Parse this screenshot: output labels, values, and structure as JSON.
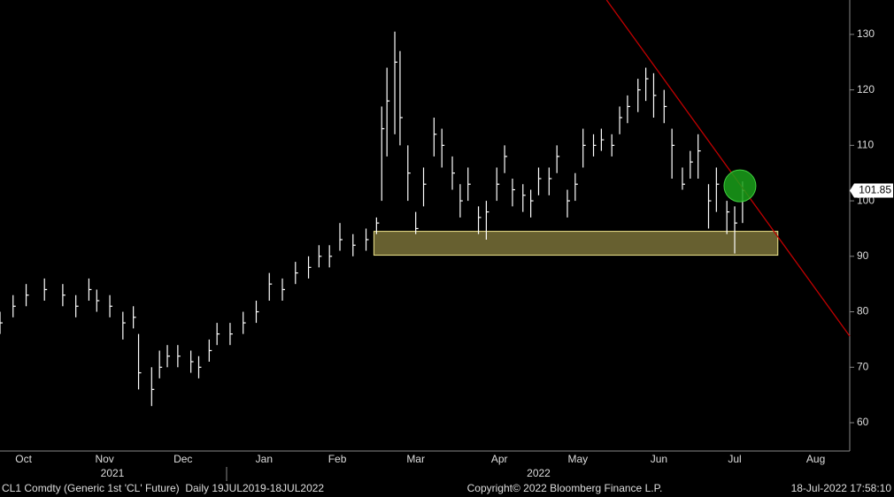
{
  "chart_data": {
    "type": "ohlc",
    "x": [
      0,
      5,
      10,
      17,
      24,
      29,
      34,
      37,
      42,
      47,
      51,
      53,
      58,
      61,
      64,
      68,
      73,
      76,
      80,
      83,
      88,
      93,
      98,
      103,
      108,
      113,
      118,
      122,
      126,
      130,
      135,
      140,
      144,
      146,
      148,
      151,
      153,
      156,
      159,
      162,
      166,
      169,
      173,
      176,
      179,
      183,
      186,
      190,
      193,
      196,
      200,
      203,
      206,
      210,
      213,
      217,
      220,
      223,
      227,
      230,
      234,
      237,
      240,
      244,
      247,
      250,
      254,
      257,
      261,
      264,
      267,
      271,
      274,
      278,
      281,
      284
    ],
    "high": [
      80,
      83,
      85,
      86,
      85,
      83,
      86,
      84,
      83,
      80,
      81,
      76,
      70,
      73,
      74,
      74,
      73,
      72,
      75,
      78,
      78,
      80,
      82,
      87,
      86,
      89,
      90,
      92,
      92,
      96,
      94,
      95,
      97,
      117,
      124,
      130.5,
      127,
      110,
      98,
      106,
      115,
      113,
      108,
      103,
      106,
      99,
      100,
      106,
      110,
      104,
      103,
      102,
      106,
      106,
      110,
      102,
      105,
      113,
      112,
      113,
      112,
      117,
      119,
      122,
      124,
      123,
      120,
      113,
      106,
      109,
      112,
      103,
      106,
      100,
      99,
      103.5
    ],
    "low": [
      76,
      79,
      81,
      82,
      81,
      79,
      82,
      80,
      79,
      75,
      77,
      66,
      63,
      68,
      70,
      70,
      69,
      68,
      71,
      74,
      74,
      76,
      78,
      82,
      82,
      85,
      86,
      88,
      88,
      91,
      90,
      91,
      94,
      100,
      108,
      112,
      110,
      100,
      94,
      99,
      108,
      106,
      102,
      97,
      100,
      94,
      93,
      100,
      105,
      99,
      98,
      97,
      101,
      101,
      105,
      97,
      100,
      106,
      108,
      109,
      108,
      112,
      114,
      116,
      118,
      115,
      114,
      104,
      102,
      104,
      104,
      95,
      98,
      94,
      90.5,
      96
    ],
    "close": [
      78,
      81,
      83,
      84,
      83,
      81,
      84,
      82,
      81,
      78,
      79,
      69,
      66,
      70,
      72,
      72,
      71,
      70,
      73,
      76,
      76,
      78,
      80,
      85,
      84,
      87,
      88,
      90,
      90,
      93,
      92,
      93,
      96,
      113,
      118,
      125,
      115,
      105,
      95,
      103,
      112,
      110,
      105,
      100,
      103,
      97,
      98,
      103,
      108,
      102,
      101,
      100,
      104,
      104,
      108,
      100,
      103,
      110,
      110,
      111,
      110,
      115,
      117,
      120,
      122,
      119,
      117,
      110,
      103,
      107,
      109,
      100,
      103,
      98,
      96,
      101.85
    ],
    "last_price": 101.85,
    "color": "#ffffff",
    "xlim": [
      0,
      325
    ],
    "ylim": [
      54.9,
      136.2
    ],
    "yticks": [
      60,
      70,
      80,
      90,
      100,
      110,
      120,
      130
    ],
    "xticks": [
      {
        "value": 9,
        "label": "Oct"
      },
      {
        "value": 40,
        "label": "Nov"
      },
      {
        "value": 70,
        "label": "Dec"
      },
      {
        "value": 101,
        "label": "Jan"
      },
      {
        "value": 129,
        "label": "Feb"
      },
      {
        "value": 159,
        "label": "Mar"
      },
      {
        "value": 191,
        "label": "Apr"
      },
      {
        "value": 221,
        "label": "May"
      },
      {
        "value": 252,
        "label": "Jun"
      },
      {
        "value": 281,
        "label": "Jul"
      },
      {
        "value": 312,
        "label": "Aug"
      }
    ],
    "years": [
      {
        "value": 43,
        "label": "2021"
      },
      {
        "value": 206,
        "label": "2022"
      }
    ],
    "trendline": {
      "x": [
        232,
        325
      ],
      "y": [
        136.2,
        75.6
      ],
      "color": "#c00000"
    },
    "support_box": {
      "x": [
        143,
        297.5
      ],
      "y": [
        90.2,
        94.5
      ],
      "color": "#8a8040"
    },
    "highlight": {
      "x": 283,
      "y": 102.7,
      "color": "#1aa01a"
    },
    "footer": {
      "left": "CL1 Comdty (Generic 1st 'CL' Future)  Daily 19JUL2019-18JUL2022",
      "center": "Copyright© 2022 Bloomberg Finance L.P.",
      "right": "18-Jul-2022 17:58:10"
    }
  }
}
